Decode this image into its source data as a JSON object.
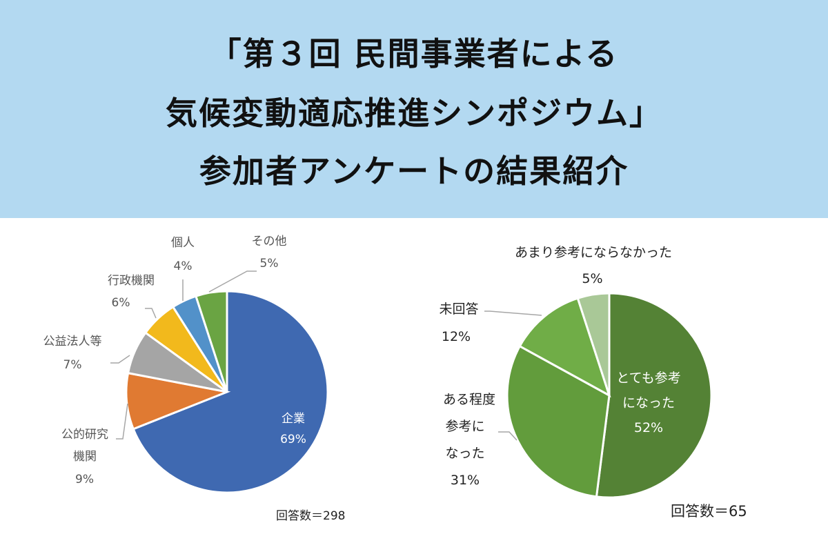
{
  "header": {
    "title_lines": [
      "「第３回 民間事業者による",
      "気候変動適応推進シンポジウム」",
      "参加者アンケートの結果紹介"
    ]
  },
  "chart_data": [
    {
      "type": "pie",
      "title": "",
      "categories": [
        "企業",
        "公的研究機関",
        "公益法人等",
        "行政機関",
        "個人",
        "その他"
      ],
      "values": [
        69,
        9,
        7,
        6,
        4,
        5
      ],
      "value_labels": [
        "69%",
        "9%",
        "7%",
        "6%",
        "4%",
        "5%"
      ],
      "colors": [
        "#3f69b1",
        "#e07a32",
        "#a5a5a5",
        "#f2b91c",
        "#5291c9",
        "#6aa443"
      ],
      "start": "top, clockwise",
      "annotation": "回答数＝298"
    },
    {
      "type": "pie",
      "title": "",
      "categories": [
        "とても参考になった",
        "ある程度参考になった",
        "未回答",
        "あまり参考にならなかった"
      ],
      "label_lines": [
        [
          "とても参考",
          "になった"
        ],
        [
          "ある程度",
          "参考に",
          "なった"
        ],
        [
          "未回答"
        ],
        [
          "あまり参考にならなかった"
        ]
      ],
      "values": [
        52,
        31,
        12,
        5
      ],
      "value_labels": [
        "52%",
        "31%",
        "12%",
        "5%"
      ],
      "colors": [
        "#548235",
        "#629c3c",
        "#70ad47",
        "#a9c897"
      ],
      "start": "top, clockwise",
      "annotation": "回答数＝65"
    }
  ]
}
